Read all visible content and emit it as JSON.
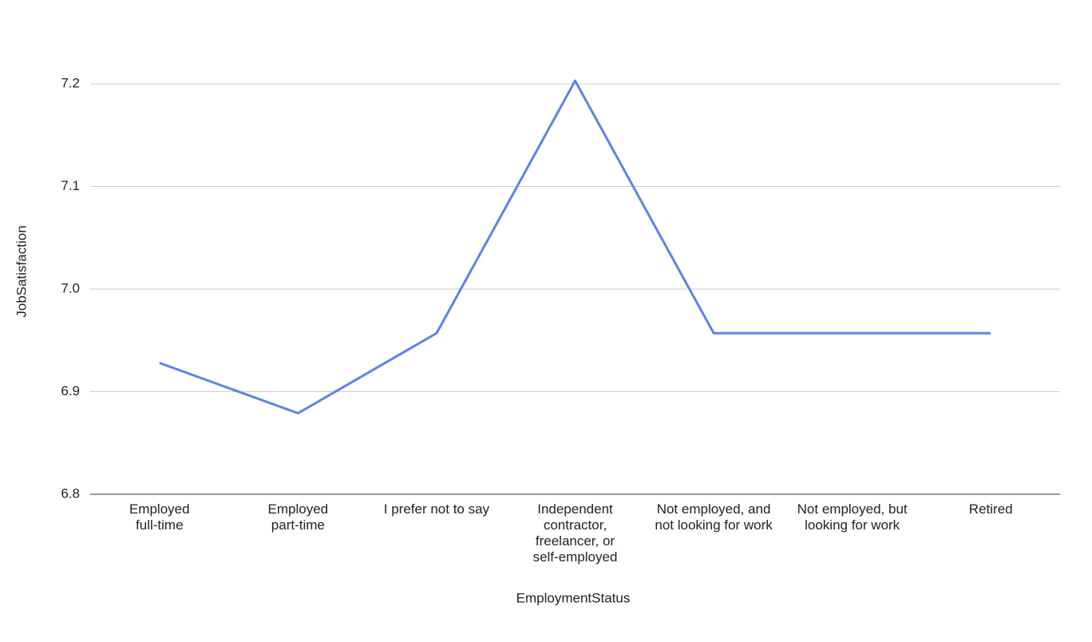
{
  "chart_data": {
    "type": "line",
    "x_label": "EmploymentStatus",
    "y_label": "JobSatisfaction",
    "categories": [
      "Employed full-time",
      "Employed part-time",
      "I prefer not to say",
      "Independent contractor, freelancer, or self-employed",
      "Not employed, and not looking for work",
      "Not employed, but looking for work",
      "Retired"
    ],
    "values": [
      6.928,
      6.879,
      6.957,
      7.203,
      6.957,
      6.957,
      6.957
    ],
    "color": "#5b84e6",
    "ylim": [
      6.8,
      7.2
    ],
    "yticks": [
      6.8,
      6.9,
      {
        "value": 7.0,
        "label": "7.0"
      },
      7.1,
      7.2
    ],
    "grid": true
  }
}
